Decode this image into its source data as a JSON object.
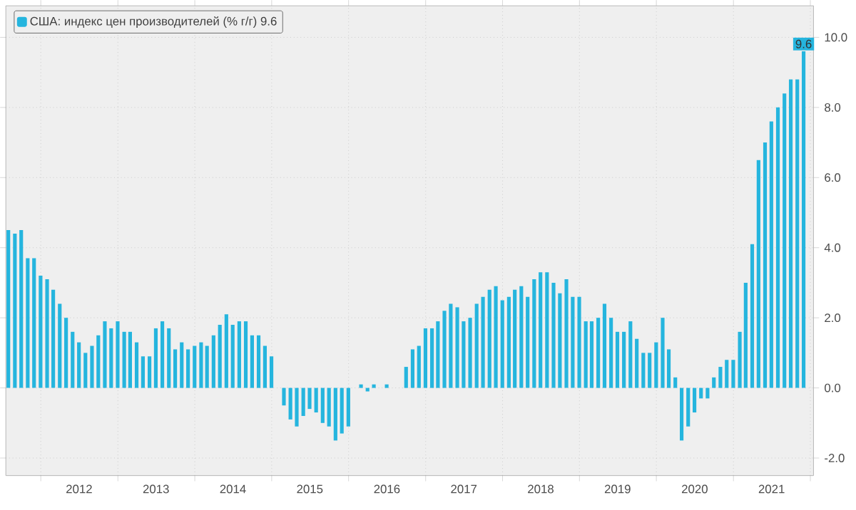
{
  "chart_data": {
    "type": "bar",
    "x": [
      "2011-07-31",
      "2011-08-31",
      "2011-09-30",
      "2011-10-31",
      "2011-11-30",
      "2011-12-31",
      "2012-01-31",
      "2012-02-29",
      "2012-03-31",
      "2012-04-30",
      "2012-05-31",
      "2012-06-30",
      "2012-07-31",
      "2012-08-31",
      "2012-09-30",
      "2012-10-31",
      "2012-11-30",
      "2012-12-31",
      "2013-01-31",
      "2013-02-28",
      "2013-03-31",
      "2013-04-30",
      "2013-05-31",
      "2013-06-30",
      "2013-07-31",
      "2013-08-31",
      "2013-09-30",
      "2013-10-31",
      "2013-11-30",
      "2013-12-31",
      "2014-01-31",
      "2014-02-28",
      "2014-03-31",
      "2014-04-30",
      "2014-05-31",
      "2014-06-30",
      "2014-07-31",
      "2014-08-31",
      "2014-09-30",
      "2014-10-31",
      "2014-11-30",
      "2014-12-31",
      "2015-01-31",
      "2015-02-28",
      "2015-03-31",
      "2015-04-30",
      "2015-05-31",
      "2015-06-30",
      "2015-07-31",
      "2015-08-31",
      "2015-09-30",
      "2015-10-31",
      "2015-11-30",
      "2015-12-31",
      "2016-01-31",
      "2016-02-29",
      "2016-03-31",
      "2016-04-30",
      "2016-05-31",
      "2016-06-30",
      "2016-07-31",
      "2016-08-31",
      "2016-09-30",
      "2016-10-31",
      "2016-11-30",
      "2016-12-31",
      "2017-01-31",
      "2017-02-28",
      "2017-03-31",
      "2017-04-30",
      "2017-05-31",
      "2017-06-30",
      "2017-07-31",
      "2017-08-31",
      "2017-09-30",
      "2017-10-31",
      "2017-11-30",
      "2017-12-31",
      "2018-01-31",
      "2018-02-28",
      "2018-03-31",
      "2018-04-30",
      "2018-05-31",
      "2018-06-30",
      "2018-07-31",
      "2018-08-31",
      "2018-09-30",
      "2018-10-31",
      "2018-11-30",
      "2018-12-31",
      "2019-01-31",
      "2019-02-28",
      "2019-03-31",
      "2019-04-30",
      "2019-05-31",
      "2019-06-30",
      "2019-07-31",
      "2019-08-31",
      "2019-09-30",
      "2019-10-31",
      "2019-11-30",
      "2019-12-31",
      "2020-01-31",
      "2020-02-29",
      "2020-03-31",
      "2020-04-30",
      "2020-05-31",
      "2020-06-30",
      "2020-07-31",
      "2020-08-31",
      "2020-09-30",
      "2020-10-31",
      "2020-11-30",
      "2020-12-31",
      "2021-01-31",
      "2021-02-28",
      "2021-03-31",
      "2021-04-30",
      "2021-05-31",
      "2021-06-30",
      "2021-07-31",
      "2021-08-31",
      "2021-09-30",
      "2021-10-31",
      "2021-11-30"
    ],
    "series": [
      {
        "name": "США: индекс цен производителей (% г/г) 9.6",
        "color": "#25b5de",
        "values": [
          4.5,
          4.4,
          4.5,
          3.7,
          3.7,
          3.2,
          3.1,
          2.8,
          2.4,
          2.0,
          1.6,
          1.3,
          1.0,
          1.2,
          1.5,
          1.9,
          1.7,
          1.9,
          1.6,
          1.6,
          1.3,
          0.9,
          0.9,
          1.7,
          1.9,
          1.7,
          1.1,
          1.3,
          1.1,
          1.2,
          1.3,
          1.2,
          1.5,
          1.8,
          2.1,
          1.8,
          1.9,
          1.9,
          1.5,
          1.5,
          1.2,
          0.9,
          0.0,
          -0.5,
          -0.9,
          -1.1,
          -0.8,
          -0.6,
          -0.7,
          -1.0,
          -1.1,
          -1.5,
          -1.3,
          -1.1,
          0.0,
          0.1,
          -0.1,
          0.1,
          0.0,
          0.1,
          0.0,
          0.0,
          0.6,
          1.1,
          1.2,
          1.7,
          1.7,
          1.9,
          2.2,
          2.4,
          2.3,
          1.9,
          2.0,
          2.4,
          2.6,
          2.8,
          2.9,
          2.5,
          2.6,
          2.8,
          2.9,
          2.6,
          3.1,
          3.3,
          3.3,
          3.0,
          2.7,
          3.1,
          2.6,
          2.6,
          1.9,
          1.9,
          2.0,
          2.4,
          2.0,
          1.6,
          1.6,
          1.9,
          1.4,
          1.0,
          1.0,
          1.3,
          2.0,
          1.1,
          0.3,
          -1.5,
          -1.1,
          -0.7,
          -0.3,
          -0.3,
          0.3,
          0.6,
          0.8,
          0.8,
          1.6,
          3.0,
          4.1,
          6.5,
          7.0,
          7.6,
          8.0,
          8.4,
          8.8,
          8.8,
          9.6
        ],
        "value_labels": [
          null,
          null,
          null,
          null,
          null,
          null,
          null,
          null,
          null,
          null,
          null,
          null,
          null,
          null,
          null,
          null,
          null,
          null,
          null,
          null,
          null,
          null,
          null,
          null,
          null,
          null,
          null,
          null,
          null,
          null,
          null,
          null,
          null,
          null,
          null,
          null,
          null,
          null,
          null,
          null,
          null,
          null,
          null,
          null,
          null,
          null,
          null,
          null,
          null,
          null,
          null,
          null,
          null,
          null,
          null,
          null,
          null,
          null,
          null,
          null,
          null,
          null,
          null,
          null,
          null,
          null,
          null,
          null,
          null,
          null,
          null,
          null,
          null,
          null,
          null,
          null,
          null,
          null,
          null,
          null,
          null,
          null,
          null,
          null,
          null,
          null,
          null,
          null,
          null,
          null,
          null,
          null,
          null,
          null,
          null,
          null,
          null,
          null,
          null,
          null,
          null,
          null,
          null,
          null,
          null,
          null,
          null,
          null,
          null,
          null,
          null,
          null,
          null,
          null,
          null,
          null,
          null,
          null,
          null,
          null,
          null,
          null,
          null,
          null,
          "9.6"
        ]
      }
    ],
    "xlim": [
      "2011-07-19",
      "2022-01-16"
    ],
    "xticks": [
      {
        "value": "2012-01-01",
        "label": null
      },
      {
        "value": "2012-07-01",
        "label": "2012"
      },
      {
        "value": "2013-01-01",
        "label": null
      },
      {
        "value": "2013-07-01",
        "label": "2013"
      },
      {
        "value": "2014-01-01",
        "label": null
      },
      {
        "value": "2014-07-01",
        "label": "2014"
      },
      {
        "value": "2015-01-01",
        "label": null
      },
      {
        "value": "2015-07-01",
        "label": "2015"
      },
      {
        "value": "2016-01-01",
        "label": null
      },
      {
        "value": "2016-07-01",
        "label": "2016"
      },
      {
        "value": "2017-01-01",
        "label": null
      },
      {
        "value": "2017-07-01",
        "label": "2017"
      },
      {
        "value": "2018-01-01",
        "label": null
      },
      {
        "value": "2018-07-01",
        "label": "2018"
      },
      {
        "value": "2019-01-01",
        "label": null
      },
      {
        "value": "2019-07-01",
        "label": "2019"
      },
      {
        "value": "2020-01-01",
        "label": null
      },
      {
        "value": "2020-07-01",
        "label": "2020"
      },
      {
        "value": "2021-01-01",
        "label": null
      },
      {
        "value": "2021-07-01",
        "label": "2021"
      },
      {
        "value": "2022-01-01",
        "label": null
      }
    ],
    "ylim": [
      -2.5,
      10.9
    ],
    "yticks": [
      {
        "value": -2,
        "label": "-2.0"
      },
      {
        "value": 0,
        "label": "0.0"
      },
      {
        "value": 2,
        "label": "2.0"
      },
      {
        "value": 4,
        "label": "4.0"
      },
      {
        "value": 6,
        "label": "6.0"
      },
      {
        "value": 8,
        "label": "8.0"
      },
      {
        "value": 10,
        "label": "10.0"
      }
    ],
    "grid": true,
    "legend": "top left"
  }
}
